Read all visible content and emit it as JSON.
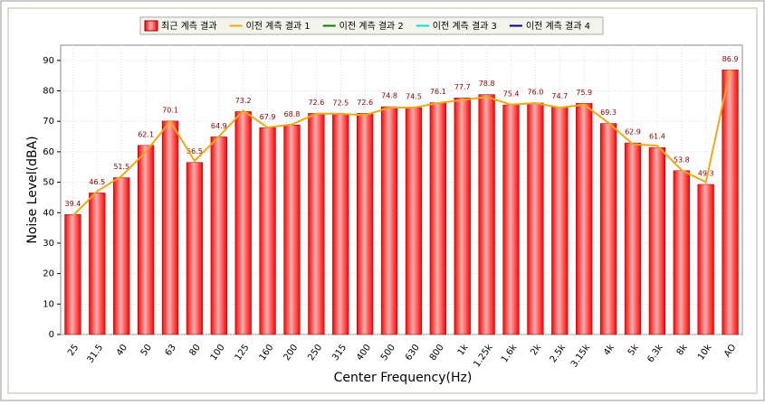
{
  "chart_data": {
    "type": "bar",
    "x_label": "Center Frequency(Hz)",
    "y_label": "Noise Level(dBA)",
    "categories": [
      "25",
      "31.5",
      "40",
      "50",
      "63",
      "80",
      "100",
      "125",
      "160",
      "200",
      "250",
      "315",
      "400",
      "500",
      "630",
      "800",
      "1k",
      "1.25k",
      "1.6k",
      "2k",
      "2.5k",
      "3.15k",
      "4k",
      "5k",
      "6.3k",
      "8k",
      "10k",
      "AO"
    ],
    "series": [
      {
        "name": "최근 계측 결과",
        "type": "bar",
        "color": "#ff0000",
        "values": [
          39.4,
          46.5,
          51.5,
          62.1,
          70.1,
          56.5,
          64.9,
          73.2,
          67.9,
          68.8,
          72.6,
          72.5,
          72.6,
          74.8,
          74.5,
          76.1,
          77.7,
          78.8,
          75.4,
          76.0,
          74.7,
          75.9,
          69.3,
          62.9,
          61.4,
          53.8,
          49.3,
          86.9
        ],
        "value_labels": [
          "39.4",
          "46.5",
          "51.5",
          "62.1",
          "70.1",
          "56.5",
          "64.9",
          "73.2",
          "67.9",
          "68.8",
          "72.6",
          "72.5",
          "72.6",
          "74.8",
          "74.5",
          "76.1",
          "77.7",
          "78.8",
          "75.4",
          "76.0",
          "74.7",
          "75.9",
          "69.3",
          "62.9",
          "61.4",
          "53.8",
          "49.3",
          "86.9"
        ]
      },
      {
        "name": "이전 계측 결과 1",
        "type": "line",
        "color": "#f0a818",
        "values": [
          39,
          47,
          52,
          60,
          70,
          57,
          65,
          73.5,
          68,
          69,
          72.5,
          72.5,
          72,
          74.5,
          74.5,
          76,
          77,
          78,
          75.5,
          76,
          74.5,
          75.5,
          69.5,
          62.5,
          62,
          54,
          50,
          87
        ]
      },
      {
        "name": "이전 계측 결과 2",
        "type": "line",
        "color": "#008000",
        "values": [
          null,
          null,
          null,
          null,
          null,
          null,
          null,
          null,
          null,
          null,
          null,
          null,
          null,
          null,
          null,
          null,
          null,
          null,
          null,
          null,
          null,
          null,
          null,
          null,
          null,
          null,
          null,
          null
        ]
      },
      {
        "name": "이전 계측 결과 3",
        "type": "line",
        "color": "#00e0e0",
        "values": [
          null,
          null,
          null,
          null,
          null,
          null,
          null,
          null,
          null,
          null,
          null,
          null,
          null,
          null,
          null,
          null,
          null,
          null,
          null,
          null,
          null,
          null,
          null,
          null,
          null,
          null,
          null,
          null
        ]
      },
      {
        "name": "이전 계측 결과 4",
        "type": "line",
        "color": "#000080",
        "values": [
          null,
          null,
          null,
          null,
          null,
          null,
          null,
          null,
          null,
          null,
          null,
          null,
          null,
          null,
          null,
          null,
          null,
          null,
          null,
          null,
          null,
          null,
          null,
          null,
          null,
          null,
          null,
          null
        ]
      }
    ],
    "ylim": [
      0,
      95
    ],
    "yticks": [
      0,
      10,
      20,
      30,
      40,
      50,
      60,
      70,
      80,
      90
    ],
    "grid": true
  }
}
